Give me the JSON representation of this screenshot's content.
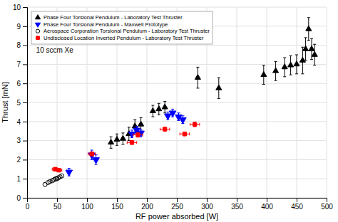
{
  "chart_data": {
    "type": "scatter",
    "xlabel": "RF power absorbed [W]",
    "ylabel": "Thrust [mN]",
    "xlim": [
      0,
      500
    ],
    "ylim": [
      0,
      10
    ],
    "xticks": [
      0,
      50,
      100,
      150,
      200,
      250,
      300,
      350,
      400,
      450,
      500
    ],
    "yticks": [
      0,
      1,
      2,
      3,
      4,
      5,
      6,
      7,
      8,
      9,
      10
    ],
    "grid": true,
    "legend": "upper left",
    "annotations": [
      {
        "text": "10 sccm Xe",
        "x": 15,
        "y": 7.6
      }
    ],
    "series": [
      {
        "name": "Phase Four Torsional Pendulum - Laboratory Test Thruster",
        "color": "black",
        "marker": "triangle-up",
        "x": [
          140,
          150,
          160,
          170,
          180,
          190,
          210,
          220,
          230,
          285,
          320,
          395,
          415,
          430,
          440,
          450,
          460,
          465,
          470,
          475,
          480
        ],
        "values": [
          2.9,
          3.05,
          3.1,
          3.35,
          3.75,
          3.85,
          4.55,
          4.65,
          4.75,
          6.3,
          5.75,
          6.45,
          6.65,
          6.85,
          6.95,
          7.0,
          7.2,
          7.8,
          8.85,
          7.8,
          7.5
        ],
        "yerr": [
          0.3,
          0.3,
          0.3,
          0.35,
          0.35,
          0.35,
          0.3,
          0.3,
          0.3,
          0.55,
          0.55,
          0.5,
          0.5,
          0.5,
          0.5,
          0.5,
          0.7,
          0.6,
          0.6,
          0.55,
          0.55
        ]
      },
      {
        "name": "Phase Four Torsional Pendulum - Maxwell Prototype",
        "color": "blue",
        "marker": "triangle-down",
        "x": [
          70,
          108,
          115,
          175,
          183,
          190,
          235,
          243,
          253,
          260
        ],
        "values": [
          1.35,
          2.25,
          2.0,
          3.35,
          3.55,
          3.4,
          4.3,
          4.45,
          4.25,
          4.1
        ],
        "yerr": [
          0.2,
          0.25,
          0.25,
          0.2,
          0.2,
          0.2,
          0.2,
          0.2,
          0.2,
          0.2
        ]
      },
      {
        "name": "Aerospace Corporation Torsional Pendulum - Laboratory Test Thruster",
        "color": "black",
        "marker": "open-circle",
        "x": [
          30,
          35,
          38,
          42,
          45,
          48,
          50,
          52,
          55,
          58
        ],
        "values": [
          0.7,
          0.8,
          0.85,
          0.9,
          0.95,
          1.0,
          1.0,
          1.05,
          1.1,
          1.15
        ]
      },
      {
        "name": "Undisclosed Location Inverted Pendulum - Laboratory Test Thruster",
        "color": "red",
        "marker": "square",
        "x": [
          47,
          53,
          108,
          175,
          185,
          230,
          263,
          280
        ],
        "values": [
          1.5,
          1.45,
          2.3,
          2.9,
          3.3,
          3.6,
          3.35,
          3.85
        ],
        "yerr": [
          0.08,
          0.08,
          0.1,
          0.1,
          0.12,
          0.1,
          0.1,
          0.12
        ],
        "xerr": [
          5,
          5,
          6,
          8,
          8,
          8,
          8,
          8
        ]
      }
    ]
  }
}
